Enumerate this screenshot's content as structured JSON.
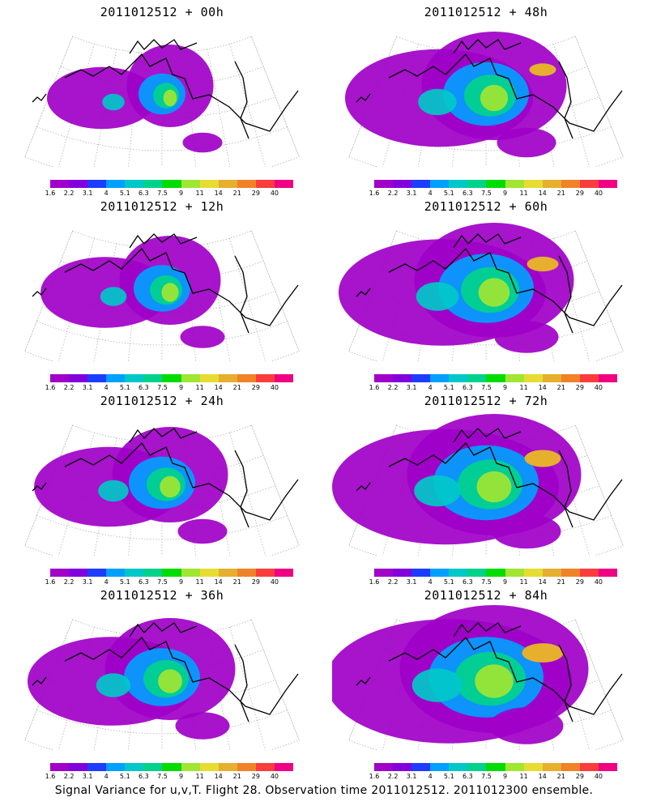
{
  "panels": [
    {
      "title": "2011012512 + 00h"
    },
    {
      "title": "2011012512 + 48h"
    },
    {
      "title": "2011012512 + 12h"
    },
    {
      "title": "2011012512 + 60h"
    },
    {
      "title": "2011012512 + 24h"
    },
    {
      "title": "2011012512 + 72h"
    },
    {
      "title": "2011012512 + 36h"
    },
    {
      "title": "2011012512 + 84h"
    }
  ],
  "colorbar": {
    "labels": [
      "1.6",
      "2.2",
      "3.1",
      "4",
      "5.1",
      "6.3",
      "7.5",
      "9",
      "11",
      "14",
      "21",
      "29",
      "40"
    ],
    "colors": [
      "#a000c8",
      "#8200dc",
      "#1e3cff",
      "#00a0ff",
      "#00c8c8",
      "#00d28c",
      "#00dc00",
      "#a0e632",
      "#e6dc32",
      "#e6af2d",
      "#f08228",
      "#fa3c3c",
      "#f00082"
    ]
  },
  "caption": "Signal Variance for u,v,T. Flight 28. Observation time 2011012512. 2011012300 ensemble."
}
